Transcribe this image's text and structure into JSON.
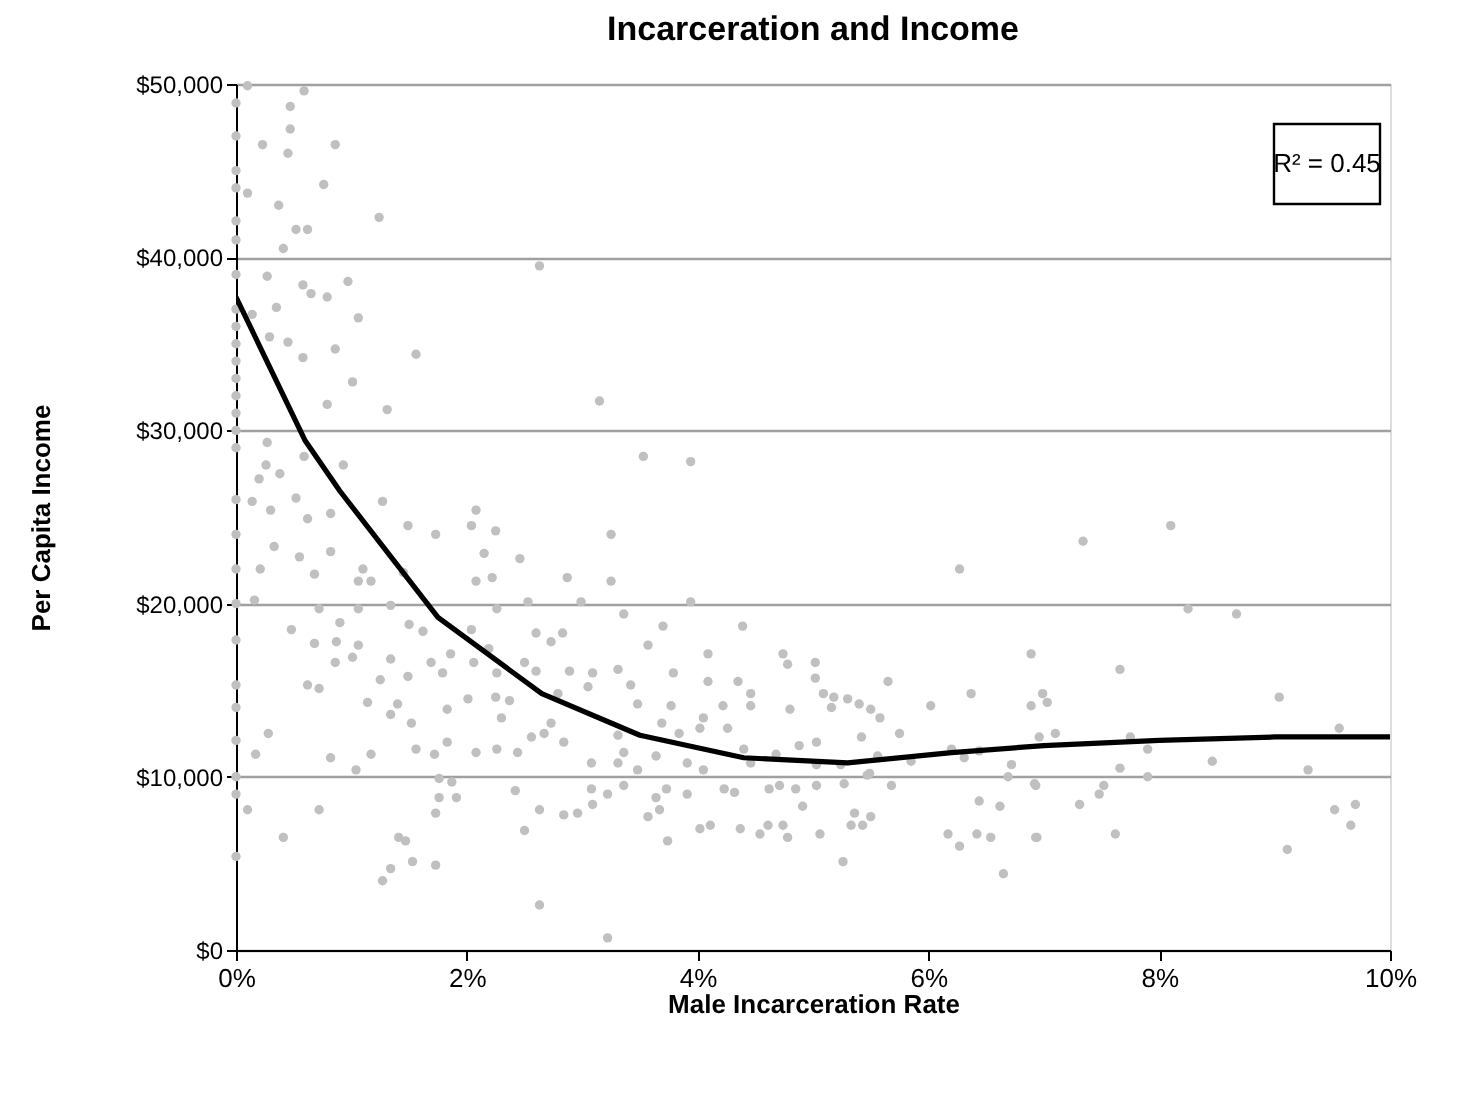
{
  "chart_data": {
    "type": "scatter",
    "title": "Incarceration and Income",
    "xlabel": "Male Incarceration Rate",
    "ylabel": "Per Capita Income",
    "xlim": [
      0,
      10
    ],
    "xticks": [
      {
        "value": 0,
        "label": "0%"
      },
      {
        "value": 2,
        "label": "2%"
      },
      {
        "value": 4,
        "label": "4%"
      },
      {
        "value": 6,
        "label": "6%"
      },
      {
        "value": 8,
        "label": "8%"
      },
      {
        "value": 10,
        "label": "10%"
      }
    ],
    "ylim": [
      0,
      50000
    ],
    "yticks": [
      {
        "value": 0,
        "label": "$0"
      },
      {
        "value": 10000,
        "label": "$10,000"
      },
      {
        "value": 20000,
        "label": "$20,000"
      },
      {
        "value": 30000,
        "label": "$30,000"
      },
      {
        "value": 40000,
        "label": "$40,000"
      },
      {
        "value": 50000,
        "label": "$50,000"
      }
    ],
    "grid": "y",
    "annotations": [
      "R² = 0.45"
    ],
    "series": [
      {
        "color": "#c0c0c0",
        "x": [
          0.1,
          0,
          0.59,
          0.47,
          0.47,
          0.23,
          0.45,
          0.86,
          0.1,
          0.76,
          0.37,
          1.24,
          0.52,
          0.62,
          0.41,
          0,
          2.63,
          0.27,
          0.58,
          0.65,
          0.79,
          0.97,
          0.35,
          1.06,
          0.14,
          0.29,
          0.45,
          0.58,
          0.86,
          1.56,
          1.01,
          0.79,
          1.31,
          3.15,
          0.27,
          0.59,
          0.26,
          0.93,
          0.38,
          0.2,
          0.52,
          0.14,
          0.3,
          1.27,
          0.62,
          0.82,
          2.08,
          1.49,
          2.04,
          2.25,
          1.73,
          3.25,
          0.33,
          0.82,
          0.55,
          2.15,
          2.46,
          0.21,
          1.1,
          0.68,
          1.06,
          1.17,
          1.45,
          2.08,
          2.22,
          2.87,
          0.16,
          1.34,
          2.53,
          2.99,
          3.25,
          0.72,
          1.06,
          2.26,
          0.48,
          0.9,
          1.5,
          1.62,
          2.04,
          2.6,
          2.83,
          0,
          0.68,
          0.87,
          1.06,
          1.86,
          2.19,
          2.73,
          0.86,
          1.01,
          1.34,
          1.69,
          2.06,
          2.5,
          1.49,
          1.79,
          2.26,
          2.6,
          2.89,
          3.09,
          3.31,
          0.62,
          0.72,
          1.25,
          1.14,
          1.4,
          2.01,
          2.25,
          2.37,
          2.79,
          3.05,
          0,
          1.34,
          1.52,
          1.83,
          2.3,
          2.73,
          0.28,
          1.72,
          0,
          0.17,
          0.82,
          1.17,
          1.56,
          1.83,
          2.08,
          2.26,
          2.44,
          2.56,
          2.67,
          2.84,
          3.08,
          3.31,
          1.04,
          1.76,
          1.87,
          1.76,
          1.91,
          2.42,
          3.08,
          3.22,
          0.1,
          0.72,
          1.73,
          2.63,
          2.84,
          2.96,
          3.09,
          0.41,
          1.41,
          1.47,
          0,
          2.5,
          1.53,
          1.73,
          1.34,
          1.27,
          2.63,
          3.22,
          0,
          0,
          0,
          0,
          0,
          0,
          0,
          0,
          0,
          0,
          0,
          0,
          0,
          0,
          0,
          0,
          0,
          0,
          0,
          0,
          0,
          3.53,
          3.94,
          3.94,
          3.36,
          3.7,
          4.39,
          3.57,
          4.09,
          4.74,
          4.78,
          5.02,
          5.02,
          5.65,
          3.42,
          3.79,
          4.09,
          4.35,
          4.46,
          5.09,
          5.18,
          5.3,
          5.4,
          5.5,
          5.58,
          3.48,
          3.77,
          4.22,
          4.46,
          4.8,
          5.16,
          6.02,
          6.37,
          6.89,
          6.89,
          4.05,
          3.69,
          3.31,
          3.84,
          4.02,
          4.26,
          4.88,
          5.03,
          5.42,
          5.75,
          6.96,
          3.36,
          3.48,
          3.64,
          3.91,
          4.05,
          4.4,
          4.46,
          4.68,
          5.03,
          5.24,
          5.49,
          5.56,
          5.85,
          6.2,
          6.31,
          6.44,
          6.72,
          3.36,
          3.64,
          3.73,
          3.91,
          4.23,
          4.32,
          4.62,
          4.71,
          4.85,
          5.03,
          5.27,
          5.47,
          5.68,
          6.69,
          6.92,
          3.57,
          3.67,
          3.74,
          4.02,
          4.11,
          4.37,
          4.54,
          4.61,
          4.74,
          4.78,
          4.91,
          5.06,
          5.36,
          5.33,
          5.43,
          5.5,
          6.17,
          6.27,
          6.42,
          6.44,
          6.54,
          6.62,
          6.94,
          5.26,
          6.65,
          6.27,
          7.34,
          8.1,
          8.25,
          8.67,
          7.66,
          6.99,
          7.03,
          9.04,
          7.1,
          7.75,
          9.56,
          7.9,
          7.66,
          7.9,
          8.46,
          9.29,
          6.93,
          7.52,
          7.48,
          7.31,
          9.52,
          9.7,
          9.66,
          6.93,
          7.62,
          9.11
        ],
        "values": [
          49900,
          48900,
          49600,
          48700,
          47400,
          46500,
          46000,
          46500,
          43700,
          44200,
          43000,
          42300,
          41600,
          41600,
          40500,
          42100,
          39500,
          38900,
          38400,
          37900,
          37700,
          38600,
          37100,
          36500,
          36700,
          35400,
          35100,
          34200,
          34700,
          34400,
          32800,
          31500,
          31200,
          31700,
          29300,
          28500,
          28000,
          28000,
          27500,
          27200,
          26100,
          25900,
          25400,
          25900,
          24900,
          25200,
          25400,
          24500,
          24500,
          24200,
          24000,
          24000,
          23300,
          23000,
          22700,
          22900,
          22600,
          22000,
          22000,
          21700,
          21300,
          21300,
          21800,
          21300,
          21500,
          21500,
          20200,
          19900,
          20100,
          20100,
          21300,
          19700,
          19700,
          19700,
          18500,
          18900,
          18800,
          18400,
          18500,
          18300,
          18300,
          17900,
          17700,
          17800,
          17600,
          17100,
          17400,
          17800,
          16600,
          16900,
          16800,
          16600,
          16600,
          16600,
          15800,
          16000,
          16000,
          16100,
          16100,
          16000,
          16200,
          15300,
          15100,
          15600,
          14300,
          14200,
          14500,
          14600,
          14400,
          14800,
          15200,
          15300,
          13600,
          13100,
          13900,
          13400,
          13100,
          12500,
          11300,
          12100,
          11300,
          11100,
          11300,
          11600,
          12000,
          11400,
          11600,
          11400,
          12300,
          12500,
          12000,
          10800,
          10800,
          10400,
          9900,
          9700,
          8800,
          8800,
          9200,
          9300,
          9000,
          8100,
          8100,
          7900,
          8100,
          7800,
          7900,
          8400,
          6500,
          6500,
          6300,
          5400,
          6900,
          5100,
          4900,
          4700,
          4000,
          2600,
          700,
          47000,
          45000,
          44000,
          41000,
          39000,
          37000,
          36000,
          35000,
          34000,
          33000,
          32000,
          31000,
          30000,
          29000,
          26000,
          24000,
          22000,
          20000,
          14000,
          10000,
          9000,
          28500,
          28200,
          20100,
          19400,
          18700,
          18700,
          17600,
          17100,
          17100,
          16500,
          16600,
          15700,
          15500,
          15300,
          16000,
          15500,
          15500,
          14800,
          14800,
          14600,
          14500,
          14200,
          13900,
          13400,
          14200,
          14100,
          14100,
          14100,
          13900,
          14000,
          14100,
          14800,
          17100,
          14100,
          13400,
          13100,
          12400,
          12500,
          12800,
          12800,
          11800,
          12000,
          12300,
          12500,
          12300,
          11400,
          10400,
          11200,
          10800,
          10400,
          11600,
          10800,
          11300,
          10700,
          10700,
          10200,
          11200,
          10900,
          11600,
          11100,
          11500,
          10700,
          9500,
          8800,
          9300,
          9000,
          9300,
          9100,
          9300,
          9500,
          9300,
          9500,
          9600,
          10100,
          9500,
          10000,
          9600,
          7700,
          8100,
          6300,
          7000,
          7200,
          7000,
          6700,
          7200,
          7200,
          6500,
          8300,
          6700,
          7900,
          7200,
          7200,
          7700,
          6700,
          6000,
          6700,
          8600,
          6500,
          8300,
          6500,
          5100,
          4400,
          22000,
          23600,
          24500,
          19700,
          19400,
          16200,
          14800,
          14300,
          14600,
          12500,
          12300,
          12800,
          11600,
          10500,
          10000,
          10900,
          10400,
          9500,
          9500,
          9000,
          8400,
          8100,
          8400,
          7200,
          6500,
          6700,
          5800
        ]
      },
      {
        "type": "line",
        "color": "#000000",
        "x": [
          0,
          0.6,
          0.9,
          1.75,
          2.65,
          3.5,
          4.4,
          5.3,
          6.2,
          7.0,
          8.0,
          9.0,
          10.0
        ],
        "values": [
          37700,
          29400,
          26500,
          19200,
          14800,
          12400,
          11100,
          10800,
          11400,
          11800,
          12100,
          12300,
          12300
        ]
      }
    ]
  }
}
